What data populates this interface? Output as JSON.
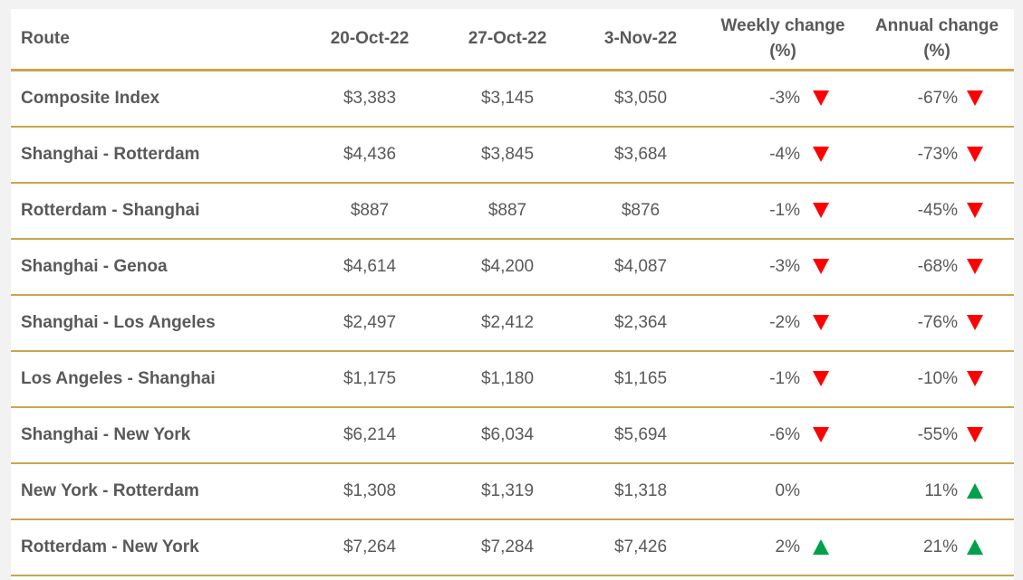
{
  "table": {
    "header": [
      "Route",
      "20-Oct-22",
      "27-Oct-22",
      "3-Nov-22",
      "Weekly change (%)",
      "Annual change (%)"
    ],
    "rows": [
      [
        "Composite Index",
        "$3,383",
        "$3,145",
        "$3,050",
        "-3%",
        "-67%"
      ],
      [
        "Shanghai - Rotterdam",
        "$4,436",
        "$3,845",
        "$3,684",
        "-4%",
        "-73%"
      ],
      [
        "Rotterdam - Shanghai",
        "$887",
        "$887",
        "$876",
        "-1%",
        "-45%"
      ],
      [
        "Shanghai - Genoa",
        "$4,614",
        "$4,200",
        "$4,087",
        "-3%",
        "-68%"
      ],
      [
        "Shanghai - Los Angeles",
        "$2,497",
        "$2,412",
        "$2,364",
        "-2%",
        "-76%"
      ],
      [
        "Los Angeles - Shanghai",
        "$1,175",
        "$1,180",
        "$1,165",
        "-1%",
        "-10%"
      ],
      [
        "Shanghai - New York",
        "$6,214",
        "$6,034",
        "$5,694",
        "-6%",
        "-55%"
      ],
      [
        "New York - Rotterdam",
        "$1,308",
        "$1,319",
        "$1,318",
        "0%",
        "11%"
      ],
      [
        "Rotterdam - New York",
        "$7,264",
        "$7,284",
        "$7,426",
        "2%",
        "21%"
      ]
    ]
  }
}
